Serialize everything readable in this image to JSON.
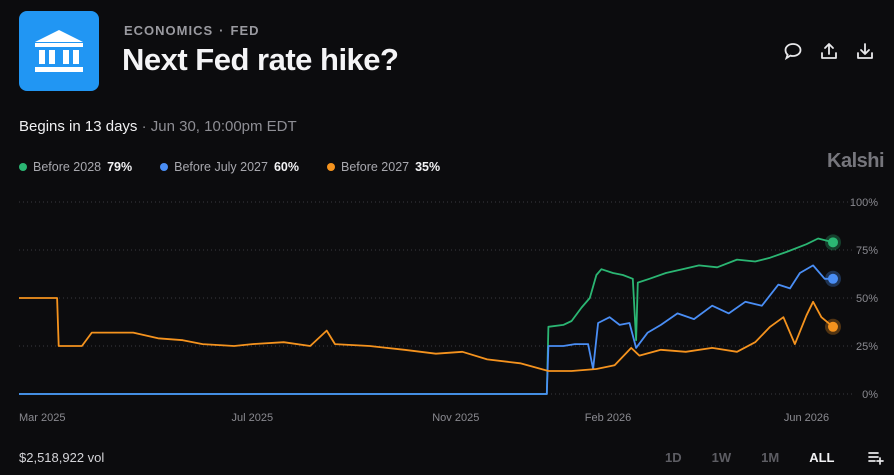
{
  "header": {
    "icon": "bank-building-icon",
    "category": "ECONOMICS",
    "separator": "·",
    "subcategory": "FED",
    "title": "Next Fed rate hike?",
    "actions": [
      "comment-icon",
      "share-icon",
      "download-icon"
    ]
  },
  "status": {
    "begins": "Begins in 13 days",
    "separator": "·",
    "date": "Jun 30, 10:00pm EDT"
  },
  "legend": [
    {
      "label": "Before 2028",
      "value": "79%",
      "color": "#2bb673"
    },
    {
      "label": "Before July 2027",
      "value": "60%",
      "color": "#4a8ef5"
    },
    {
      "label": "Before 2027",
      "value": "35%",
      "color": "#f5931e"
    }
  ],
  "brand": "Kalshi",
  "footer": {
    "volume": "$2,518,922 vol",
    "ranges": [
      "1D",
      "1W",
      "1M",
      "ALL"
    ],
    "active_range": "ALL",
    "menu_icon": "add-to-list-icon"
  },
  "chart_data": {
    "type": "line",
    "x_tick_labels": [
      "Mar 2025",
      "Jul 2025",
      "Nov 2025",
      "Feb 2026",
      "Jun 2026"
    ],
    "x_ticks": [
      "2025-03-01",
      "2025-07-01",
      "2025-11-01",
      "2026-02-01",
      "2026-06-01"
    ],
    "xlim": [
      "2025-02-10",
      "2026-06-17"
    ],
    "y_tick_labels": [
      "100%",
      "75%",
      "50%",
      "25%",
      "0%"
    ],
    "ylim": [
      0,
      100
    ],
    "grid": "horizontal dotted",
    "series": [
      {
        "name": "Before 2028",
        "color": "#2bb673",
        "points": [
          [
            "2025-02-10",
            0
          ],
          [
            "2025-12-26",
            0
          ],
          [
            "2025-12-27",
            35
          ],
          [
            "2026-01-05",
            36
          ],
          [
            "2026-01-10",
            38
          ],
          [
            "2026-01-16",
            45
          ],
          [
            "2026-01-21",
            50
          ],
          [
            "2026-01-25",
            62
          ],
          [
            "2026-01-28",
            65
          ],
          [
            "2026-02-04",
            63
          ],
          [
            "2026-02-10",
            62
          ],
          [
            "2026-02-16",
            60
          ],
          [
            "2026-02-18",
            28
          ],
          [
            "2026-02-19",
            58
          ],
          [
            "2026-02-26",
            60
          ],
          [
            "2026-03-08",
            63
          ],
          [
            "2026-03-18",
            65
          ],
          [
            "2026-03-28",
            67
          ],
          [
            "2026-04-08",
            66
          ],
          [
            "2026-04-20",
            70
          ],
          [
            "2026-05-01",
            69
          ],
          [
            "2026-05-10",
            71
          ],
          [
            "2026-05-20",
            74
          ],
          [
            "2026-06-01",
            78
          ],
          [
            "2026-06-08",
            81
          ],
          [
            "2026-06-17",
            79
          ]
        ]
      },
      {
        "name": "Before July 2027",
        "color": "#4a8ef5",
        "points": [
          [
            "2025-02-10",
            0
          ],
          [
            "2025-12-26",
            0
          ],
          [
            "2025-12-27",
            25
          ],
          [
            "2026-01-05",
            25
          ],
          [
            "2026-01-12",
            26
          ],
          [
            "2026-01-20",
            26
          ],
          [
            "2026-01-23",
            13
          ],
          [
            "2026-01-26",
            37
          ],
          [
            "2026-02-02",
            40
          ],
          [
            "2026-02-08",
            36
          ],
          [
            "2026-02-14",
            37
          ],
          [
            "2026-02-18",
            24
          ],
          [
            "2026-02-25",
            32
          ],
          [
            "2026-03-05",
            36
          ],
          [
            "2026-03-15",
            42
          ],
          [
            "2026-03-25",
            39
          ],
          [
            "2026-04-05",
            46
          ],
          [
            "2026-04-15",
            42
          ],
          [
            "2026-04-25",
            48
          ],
          [
            "2026-05-05",
            46
          ],
          [
            "2026-05-15",
            57
          ],
          [
            "2026-05-22",
            55
          ],
          [
            "2026-05-28",
            63
          ],
          [
            "2026-06-05",
            67
          ],
          [
            "2026-06-12",
            60
          ],
          [
            "2026-06-17",
            60
          ]
        ]
      },
      {
        "name": "Before 2027",
        "color": "#f5931e",
        "points": [
          [
            "2025-02-10",
            50
          ],
          [
            "2025-03-05",
            50
          ],
          [
            "2025-03-06",
            25
          ],
          [
            "2025-03-20",
            25
          ],
          [
            "2025-03-26",
            32
          ],
          [
            "2025-04-20",
            32
          ],
          [
            "2025-05-05",
            29
          ],
          [
            "2025-05-20",
            28
          ],
          [
            "2025-06-01",
            26
          ],
          [
            "2025-06-20",
            25
          ],
          [
            "2025-07-01",
            26
          ],
          [
            "2025-07-20",
            27
          ],
          [
            "2025-08-05",
            25
          ],
          [
            "2025-08-15",
            33
          ],
          [
            "2025-08-20",
            26
          ],
          [
            "2025-09-10",
            25
          ],
          [
            "2025-10-01",
            23
          ],
          [
            "2025-10-20",
            21
          ],
          [
            "2025-11-05",
            22
          ],
          [
            "2025-11-20",
            18
          ],
          [
            "2025-12-10",
            16
          ],
          [
            "2025-12-27",
            12
          ],
          [
            "2026-01-10",
            12
          ],
          [
            "2026-01-25",
            13
          ],
          [
            "2026-02-05",
            15
          ],
          [
            "2026-02-15",
            24
          ],
          [
            "2026-02-20",
            20
          ],
          [
            "2026-03-05",
            23
          ],
          [
            "2026-03-20",
            22
          ],
          [
            "2026-04-05",
            24
          ],
          [
            "2026-04-20",
            22
          ],
          [
            "2026-05-01",
            27
          ],
          [
            "2026-05-10",
            35
          ],
          [
            "2026-05-18",
            40
          ],
          [
            "2026-05-25",
            26
          ],
          [
            "2026-06-01",
            41
          ],
          [
            "2026-06-05",
            48
          ],
          [
            "2026-06-10",
            40
          ],
          [
            "2026-06-17",
            35
          ]
        ]
      }
    ]
  }
}
